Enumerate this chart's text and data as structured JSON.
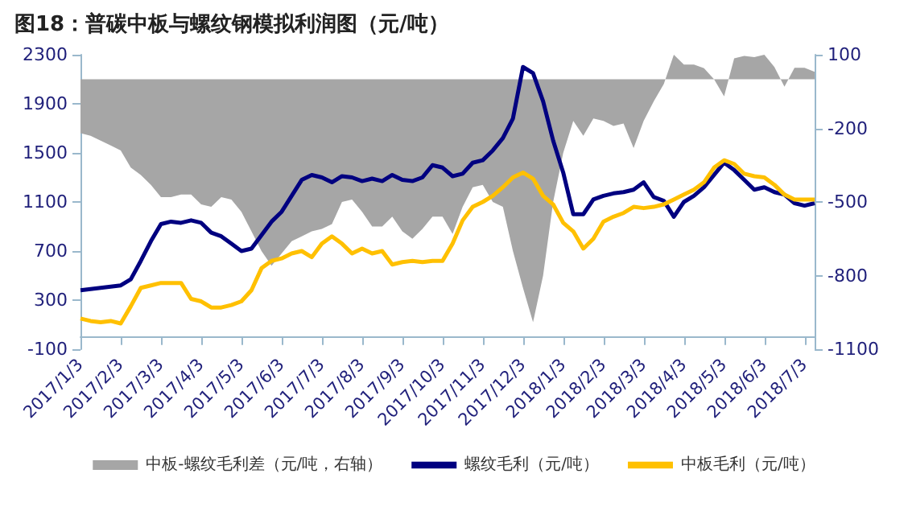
{
  "chart_data": {
    "type": "line",
    "title": "图18：普碳中板与螺纹钢模拟利润图（元/吨）",
    "categories": [
      "2017/1/3",
      null,
      null,
      null,
      "2017/2/3",
      null,
      null,
      null,
      "2017/3/3",
      null,
      null,
      null,
      "2017/4/3",
      null,
      null,
      null,
      "2017/5/3",
      null,
      null,
      null,
      "2017/6/3",
      null,
      null,
      null,
      "2017/7/3",
      null,
      null,
      null,
      "2017/8/3",
      null,
      null,
      null,
      "2017/9/3",
      null,
      null,
      null,
      "2017/10/3",
      null,
      null,
      null,
      "2017/11/3",
      null,
      null,
      null,
      "2017/12/3",
      null,
      null,
      null,
      "2018/1/3",
      null,
      null,
      null,
      "2018/2/3",
      null,
      null,
      null,
      "2018/3/3",
      null,
      null,
      null,
      "2018/4/3",
      null,
      null,
      null,
      "2018/5/3",
      null,
      null,
      null,
      "2018/6/3",
      null,
      null,
      null,
      "2018/7/3",
      null
    ],
    "series": [
      {
        "name": "中板-螺纹毛利差（元/吨，右轴）",
        "type": "area",
        "axis": "y2",
        "color": "#a6a6a6",
        "values": [
          -220,
          -230,
          -250,
          -270,
          -290,
          -360,
          -390,
          -430,
          -480,
          -480,
          -470,
          -470,
          -510,
          -520,
          -480,
          -490,
          -540,
          -620,
          -700,
          -760,
          -710,
          -660,
          -640,
          -620,
          -610,
          -590,
          -500,
          -490,
          -540,
          -600,
          -600,
          -560,
          -620,
          -650,
          -610,
          -560,
          -560,
          -630,
          -520,
          -440,
          -430,
          -500,
          -520,
          -700,
          -850,
          -990,
          -800,
          -500,
          -300,
          -170,
          -230,
          -160,
          -170,
          -190,
          -180,
          -280,
          -170,
          -90,
          -20,
          100,
          60,
          60,
          45,
          0,
          -70,
          85,
          95,
          90,
          100,
          50,
          -30,
          47,
          47,
          30
        ]
      },
      {
        "name": "螺纹毛利（元/吨）",
        "color": "#000080",
        "values": [
          380,
          390,
          400,
          410,
          420,
          470,
          620,
          780,
          920,
          940,
          930,
          950,
          930,
          850,
          820,
          760,
          700,
          720,
          830,
          940,
          1020,
          1150,
          1280,
          1320,
          1300,
          1260,
          1310,
          1300,
          1270,
          1290,
          1270,
          1320,
          1280,
          1270,
          1300,
          1400,
          1380,
          1310,
          1330,
          1420,
          1440,
          1520,
          1620,
          1780,
          2200,
          2150,
          1920,
          1600,
          1340,
          1000,
          1000,
          1120,
          1150,
          1170,
          1180,
          1200,
          1260,
          1140,
          1110,
          980,
          1100,
          1150,
          1220,
          1320,
          1420,
          1360,
          1280,
          1200,
          1220,
          1180,
          1160,
          1090,
          1070,
          1090
        ]
      },
      {
        "name": "中板毛利（元/吨）",
        "color": "#ffc000",
        "values": [
          150,
          130,
          120,
          130,
          110,
          250,
          400,
          420,
          440,
          440,
          440,
          310,
          290,
          240,
          240,
          260,
          290,
          380,
          560,
          620,
          640,
          680,
          700,
          650,
          760,
          820,
          760,
          680,
          720,
          680,
          700,
          590,
          610,
          620,
          610,
          620,
          620,
          760,
          950,
          1060,
          1100,
          1150,
          1220,
          1300,
          1340,
          1290,
          1150,
          1080,
          930,
          860,
          720,
          800,
          940,
          980,
          1010,
          1060,
          1050,
          1060,
          1080,
          1120,
          1160,
          1200,
          1260,
          1380,
          1440,
          1410,
          1330,
          1310,
          1300,
          1240,
          1160,
          1120,
          1120,
          1120
        ]
      }
    ],
    "ylim": [
      -100,
      2300
    ],
    "yticks": [
      -100,
      300,
      700,
      1100,
      1500,
      1900,
      2300
    ],
    "y2lim": [
      -1100,
      100
    ],
    "y2ticks": [
      -1100,
      -800,
      -500,
      -200,
      100
    ],
    "grid": false,
    "legend": "bottom",
    "marker": "none",
    "line_style": "solid"
  }
}
